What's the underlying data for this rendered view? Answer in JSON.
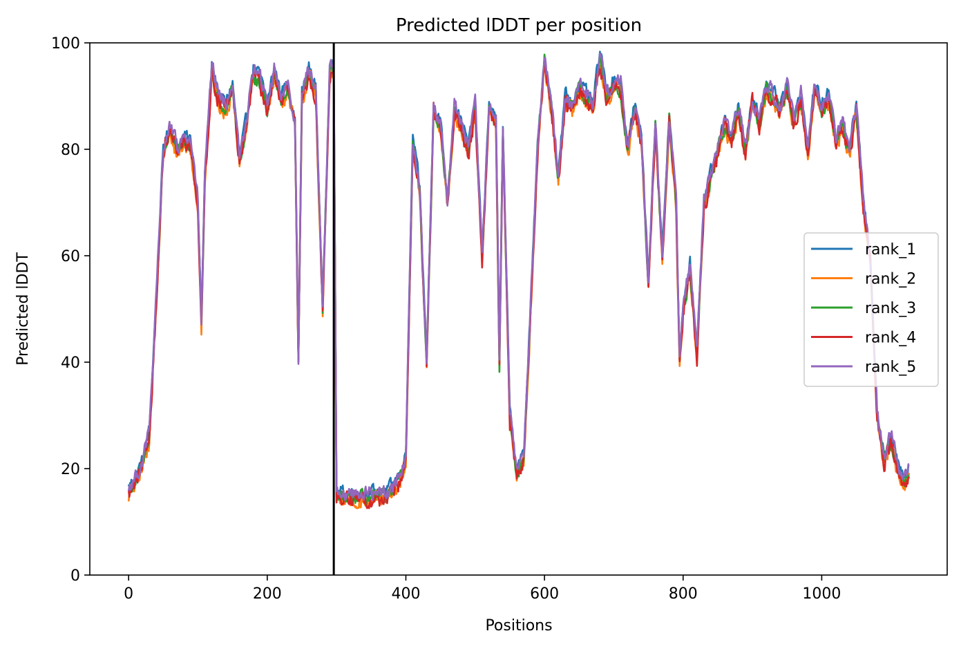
{
  "chart_data": {
    "type": "line",
    "title": "Predicted lDDT per position",
    "xlabel": "Positions",
    "ylabel": "Predicted lDDT",
    "xlim": [
      -56,
      1181
    ],
    "ylim": [
      0,
      100
    ],
    "xticks": [
      0,
      200,
      400,
      600,
      800,
      1000
    ],
    "yticks": [
      0,
      20,
      40,
      60,
      80,
      100
    ],
    "grid": false,
    "legend_position": "center-right",
    "vline": 296,
    "colors": {
      "rank_1": "#1f77b4",
      "rank_2": "#ff7f0e",
      "rank_3": "#2ca02c",
      "rank_4": "#d62728",
      "rank_5": "#9467bd",
      "vline": "#000000"
    },
    "anchor_profile": {
      "x": [
        0,
        10,
        20,
        30,
        40,
        50,
        60,
        70,
        80,
        90,
        100,
        105,
        110,
        120,
        130,
        140,
        150,
        160,
        170,
        180,
        190,
        200,
        210,
        220,
        230,
        240,
        245,
        250,
        260,
        270,
        280,
        290,
        296,
        300,
        320,
        340,
        360,
        380,
        390,
        400,
        410,
        420,
        430,
        440,
        450,
        460,
        470,
        480,
        490,
        500,
        510,
        520,
        530,
        535,
        540,
        550,
        560,
        570,
        580,
        590,
        600,
        610,
        620,
        630,
        640,
        650,
        660,
        670,
        680,
        690,
        700,
        710,
        720,
        730,
        740,
        750,
        760,
        770,
        780,
        790,
        795,
        800,
        810,
        820,
        830,
        840,
        850,
        860,
        870,
        880,
        890,
        900,
        910,
        920,
        930,
        940,
        950,
        960,
        970,
        980,
        990,
        1000,
        1010,
        1020,
        1030,
        1040,
        1050,
        1060,
        1070,
        1080,
        1090,
        1100,
        1110,
        1120,
        1126
      ],
      "y": [
        16,
        18,
        21,
        27,
        52,
        80,
        84,
        80,
        82,
        81,
        70,
        47,
        75,
        95,
        90,
        88,
        92,
        78,
        85,
        95,
        93,
        88,
        95,
        90,
        92,
        85,
        40,
        90,
        95,
        91,
        50,
        95,
        95,
        15,
        15,
        15,
        15,
        16,
        18,
        22,
        82,
        72,
        40,
        88,
        85,
        70,
        88,
        85,
        80,
        88,
        60,
        88,
        85,
        40,
        84,
        30,
        20,
        22,
        50,
        80,
        97,
        88,
        75,
        90,
        88,
        92,
        90,
        88,
        98,
        90,
        93,
        92,
        80,
        88,
        82,
        55,
        85,
        60,
        86,
        70,
        40,
        50,
        58,
        42,
        70,
        75,
        80,
        85,
        82,
        88,
        80,
        90,
        85,
        92,
        90,
        88,
        92,
        85,
        90,
        80,
        92,
        88,
        90,
        82,
        85,
        80,
        88,
        70,
        60,
        30,
        22,
        26,
        20,
        18,
        20
      ]
    },
    "series": [
      {
        "name": "rank_1",
        "jitter": 2.2,
        "offset": 0.6
      },
      {
        "name": "rank_2",
        "jitter": 2.6,
        "offset": -1.2
      },
      {
        "name": "rank_3",
        "jitter": 2.4,
        "offset": -0.6
      },
      {
        "name": "rank_4",
        "jitter": 2.8,
        "offset": -0.9
      },
      {
        "name": "rank_5",
        "jitter": 2.5,
        "offset": 0.4
      }
    ]
  }
}
